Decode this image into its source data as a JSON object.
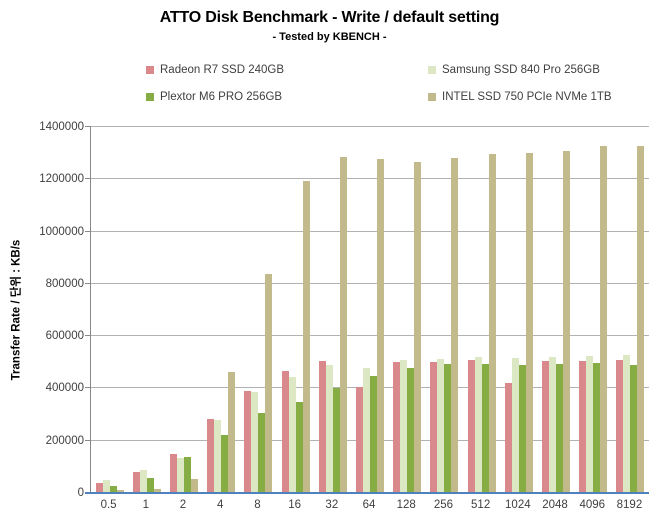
{
  "header": {
    "title": "ATTO Disk Benchmark - Write / default setting",
    "subtitle": "- Tested by KBENCH -"
  },
  "colors": {
    "radeon": "#d9898c",
    "samsung": "#dce8c3",
    "plextor": "#86ad44",
    "intel": "#c3ba8b",
    "x_axis_line": "#4f81bd",
    "gridline": "#b2b2b2",
    "axis_line": "#898989",
    "tick_text": "#3f3f3f"
  },
  "chart_data": {
    "type": "bar",
    "title": "ATTO Disk Benchmark - Write / default setting",
    "subtitle": "- Tested by KBENCH -",
    "xlabel": "",
    "ylabel": "Transfer Rate / 단위 : KB/s",
    "ylim": [
      0,
      1400000
    ],
    "ytick_interval": 200000,
    "yticks": [
      "0",
      "200000",
      "400000",
      "600000",
      "800000",
      "1000000",
      "1200000",
      "1400000"
    ],
    "grid": true,
    "legend_position": "top",
    "categories": [
      "0.5",
      "1",
      "2",
      "4",
      "8",
      "16",
      "32",
      "64",
      "128",
      "256",
      "512",
      "1024",
      "2048",
      "4096",
      "8192"
    ],
    "series": [
      {
        "name": "Radeon R7 SSD 240GB",
        "color": "#d9898c",
        "values": [
          40000,
          82000,
          148000,
          283000,
          390000,
          465000,
          505000,
          405000,
          500000,
          500000,
          510000,
          420000,
          505000,
          505000,
          510000
        ]
      },
      {
        "name": "Samsung SSD 840 Pro 256GB",
        "color": "#dce8c3",
        "values": [
          48000,
          88000,
          135000,
          280000,
          385000,
          445000,
          490000,
          480000,
          510000,
          512000,
          520000,
          515000,
          520000,
          525000,
          528000
        ]
      },
      {
        "name": "Plextor M6 PRO 256GB",
        "color": "#86ad44",
        "values": [
          28000,
          57000,
          138000,
          223000,
          305000,
          350000,
          400000,
          446000,
          480000,
          495000,
          495000,
          490000,
          495000,
          497000,
          490000
        ]
      },
      {
        "name": "INTEL SSD 750 PCIe NVMe 1TB",
        "color": "#c3ba8b",
        "values": [
          12000,
          15000,
          54000,
          463000,
          837000,
          1195000,
          1287000,
          1278000,
          1267000,
          1280000,
          1295000,
          1302000,
          1310000,
          1326000,
          1326000
        ]
      }
    ]
  }
}
